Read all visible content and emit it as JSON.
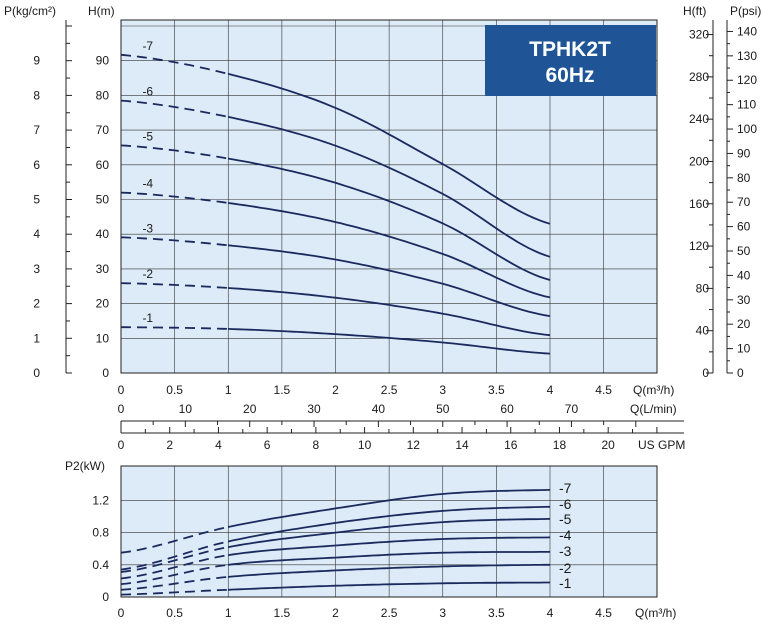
{
  "chart_data": [
    {
      "type": "line",
      "title": "TPHK2T 60Hz",
      "model": "TPHK2T",
      "frequency": "60Hz",
      "ylabel_left_pressure": "P(kg/cm²)",
      "ylabel_head": "H(m)",
      "ylabel_right_head": "H(ft)",
      "ylabel_right_pressure": "P(psi)",
      "xlabel_m3h": "Q(m³/h)",
      "xlabel_lmin": "Q(L/min)",
      "xlabel_gpm": "US GPM",
      "xlim": [
        0,
        5
      ],
      "ylim": [
        0,
        100
      ],
      "grid": true,
      "x_ticks": [
        "0",
        "0.5",
        "1",
        "1.5",
        "2",
        "2.5",
        "3",
        "3.5",
        "4",
        "4.5"
      ],
      "y_ticks": [
        "0",
        "10",
        "20",
        "30",
        "40",
        "50",
        "60",
        "70",
        "80",
        "90"
      ],
      "p_kg_ticks": [
        "0",
        "1",
        "2",
        "3",
        "4",
        "5",
        "6",
        "7",
        "8",
        "9"
      ],
      "h_ft_ticks": [
        "0",
        "40",
        "80",
        "120",
        "160",
        "200",
        "240",
        "280",
        "320"
      ],
      "p_psi_ticks": [
        "0",
        "10",
        "20",
        "30",
        "40",
        "50",
        "60",
        "70",
        "80",
        "90",
        "100",
        "110",
        "120",
        "130",
        "140"
      ],
      "lmin_ticks": [
        "0",
        "10",
        "20",
        "30",
        "40",
        "50",
        "60",
        "70"
      ],
      "gpm_ticks": [
        "0",
        "2",
        "4",
        "6",
        "8",
        "10",
        "12",
        "14",
        "16",
        "18",
        "20"
      ],
      "series": [
        {
          "name": "-1",
          "x": [
            0,
            1,
            2,
            3,
            4
          ],
          "values": [
            13.2,
            12.7,
            11.2,
            8.8,
            5.6
          ],
          "dashed_until_x": 1
        },
        {
          "name": "-2",
          "x": [
            0,
            1,
            2,
            3,
            4
          ],
          "values": [
            25.9,
            24.5,
            21.7,
            17.1,
            10.9
          ],
          "dashed_until_x": 1
        },
        {
          "name": "-3",
          "x": [
            0,
            1,
            2,
            3,
            4
          ],
          "values": [
            39.1,
            36.8,
            32.7,
            25.7,
            16.4
          ],
          "dashed_until_x": 1
        },
        {
          "name": "-4",
          "x": [
            0,
            1,
            2,
            3,
            4
          ],
          "values": [
            52.0,
            49.0,
            43.5,
            34.3,
            21.8
          ],
          "dashed_until_x": 1
        },
        {
          "name": "-5",
          "x": [
            0,
            1,
            2,
            3,
            4
          ],
          "values": [
            65.6,
            61.8,
            54.8,
            43.1,
            26.8
          ],
          "dashed_until_x": 1
        },
        {
          "name": "-6",
          "x": [
            0,
            1,
            2,
            3,
            4
          ],
          "values": [
            78.5,
            73.8,
            65.5,
            51.6,
            33.5
          ],
          "dashed_until_x": 1
        },
        {
          "name": "-7",
          "x": [
            0,
            1,
            2,
            3,
            4
          ],
          "values": [
            91.7,
            86.2,
            76.4,
            60.2,
            43.0
          ],
          "dashed_until_x": 1
        }
      ]
    },
    {
      "type": "line",
      "ylabel": "P2(kW)",
      "xlabel": "Q(m³/h)",
      "xlim": [
        0,
        5
      ],
      "ylim": [
        0,
        1.5
      ],
      "grid": true,
      "x_ticks": [
        "0",
        "0.5",
        "1",
        "1.5",
        "2",
        "2.5",
        "3",
        "3.5",
        "4",
        "4.5"
      ],
      "y_ticks": [
        "0",
        "0.4",
        "0.8",
        "1.2"
      ],
      "series": [
        {
          "name": "-1",
          "x": [
            0,
            1,
            2,
            3,
            4
          ],
          "values": [
            0.03,
            0.09,
            0.14,
            0.17,
            0.18
          ],
          "dashed_until_x": 1
        },
        {
          "name": "-2",
          "x": [
            0,
            1,
            2,
            3,
            4
          ],
          "values": [
            0.09,
            0.25,
            0.33,
            0.38,
            0.4
          ],
          "dashed_until_x": 1
        },
        {
          "name": "-3",
          "x": [
            0,
            1,
            2,
            3,
            4
          ],
          "values": [
            0.16,
            0.4,
            0.49,
            0.55,
            0.56
          ],
          "dashed_until_x": 1
        },
        {
          "name": "-4",
          "x": [
            0,
            1,
            2,
            3,
            4
          ],
          "values": [
            0.23,
            0.52,
            0.64,
            0.72,
            0.74
          ],
          "dashed_until_x": 1
        },
        {
          "name": "-5",
          "x": [
            0,
            1,
            2,
            3,
            4
          ],
          "values": [
            0.31,
            0.62,
            0.8,
            0.93,
            0.97
          ],
          "dashed_until_x": 1
        },
        {
          "name": "-6",
          "x": [
            0,
            1,
            2,
            3,
            4
          ],
          "values": [
            0.34,
            0.69,
            0.92,
            1.07,
            1.12
          ],
          "dashed_until_x": 1
        },
        {
          "name": "-7",
          "x": [
            0,
            1,
            2,
            3,
            4
          ],
          "values": [
            0.55,
            0.87,
            1.1,
            1.28,
            1.33
          ],
          "dashed_until_x": 1
        }
      ]
    }
  ],
  "colors": {
    "plot_background": "#dcebf7",
    "curve": "#1b2a5e",
    "grid": "#333333",
    "model_box": "#1f5596"
  }
}
